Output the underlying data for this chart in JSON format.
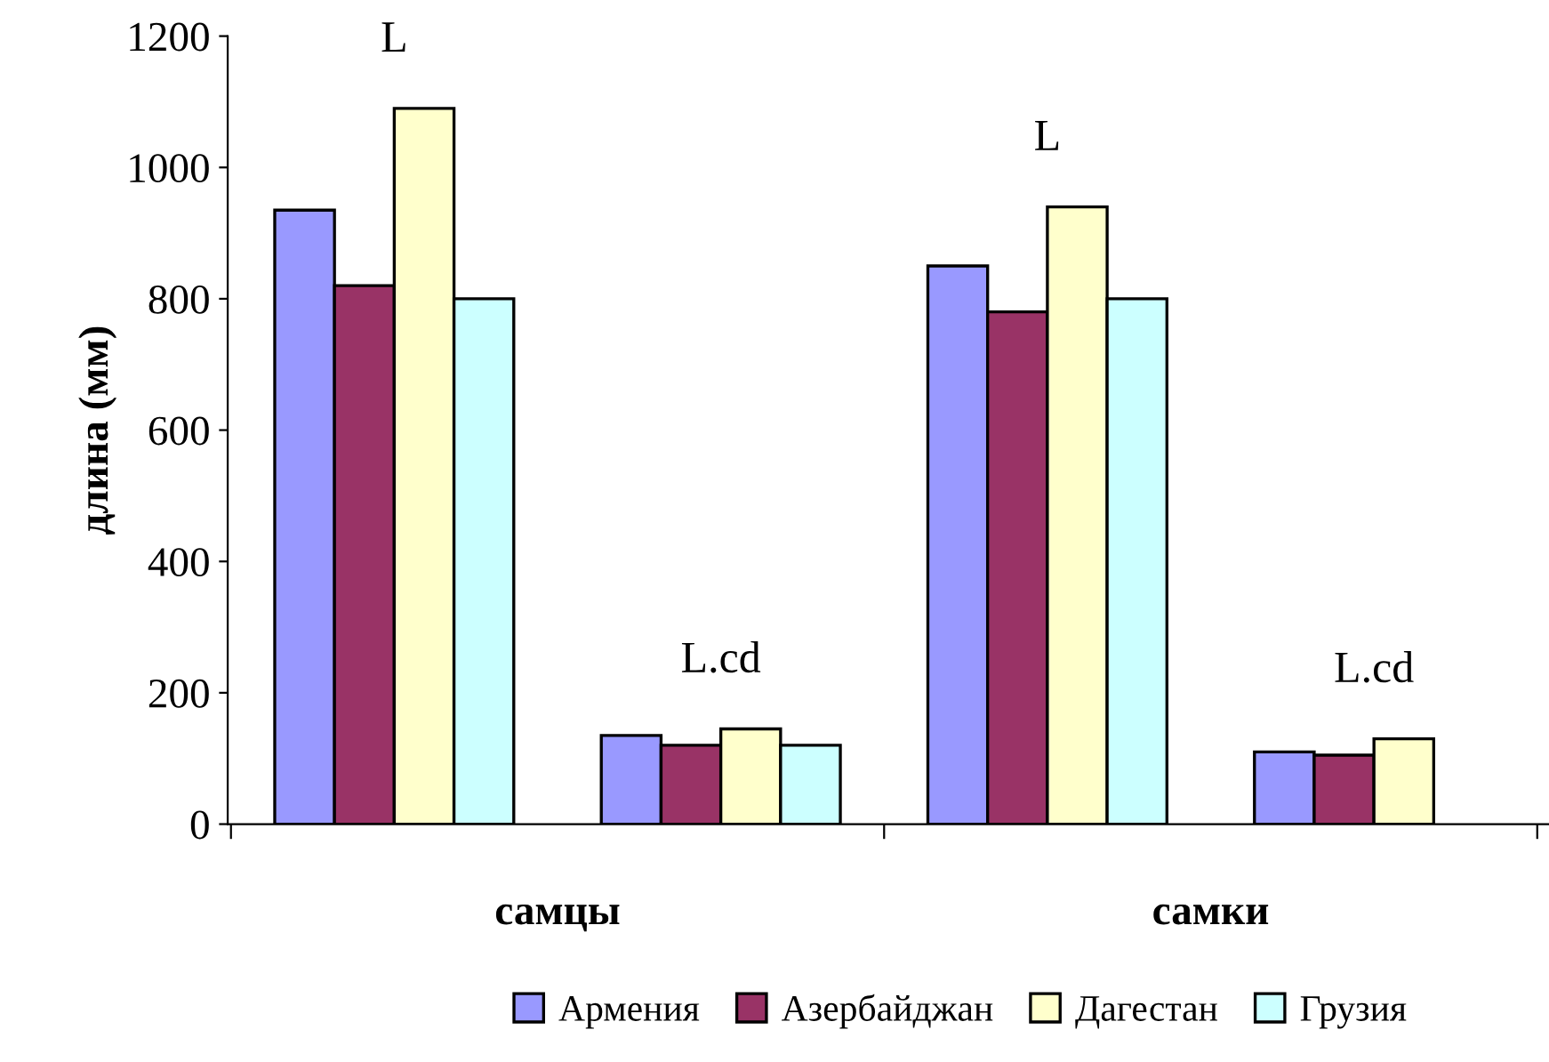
{
  "chart_data": {
    "type": "bar",
    "categories": [
      "L",
      "L.cd",
      "L",
      "L.cd"
    ],
    "ylabel": "длина (мм)",
    "ylim": [
      0,
      1200
    ],
    "yticks": [
      0,
      200,
      400,
      600,
      800,
      1000,
      1200
    ],
    "series": [
      {
        "name": "Армения",
        "color": "#9999ff",
        "values": [
          935,
          135,
          850,
          110
        ]
      },
      {
        "name": "Азербайджан",
        "color": "#993366",
        "values": [
          820,
          120,
          780,
          105
        ]
      },
      {
        "name": "Дагестан",
        "color": "#ffffcc",
        "values": [
          1090,
          145,
          940,
          130
        ]
      },
      {
        "name": "Грузия",
        "color": "#ccffff",
        "values": [
          800,
          120,
          800,
          null
        ]
      }
    ],
    "annotations": [
      "самцы",
      "самки"
    ],
    "grid": false,
    "legend": "bottom"
  }
}
